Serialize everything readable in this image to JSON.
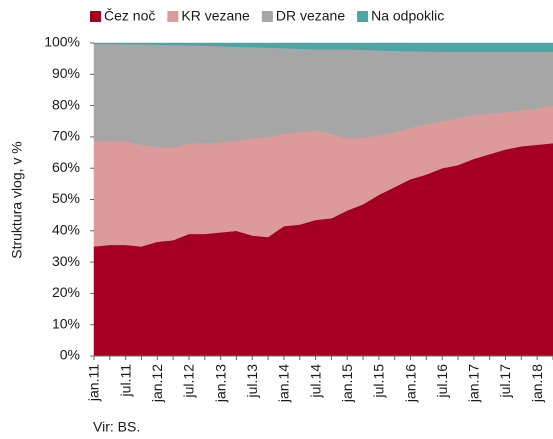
{
  "chart_data": {
    "type": "stacked_area",
    "y_axis_label": "Struktura vlog, v %",
    "source": "Vir: BS.",
    "legend": "top",
    "categories": [
      "jan.11",
      null,
      "jul.11",
      null,
      "jan.12",
      null,
      "jul.12",
      null,
      "jan.13",
      null,
      "jul.13",
      null,
      "jan.14",
      null,
      "jul.14",
      null,
      "jan.15",
      null,
      "jul.15",
      null,
      "jan.16",
      null,
      "jul.16",
      null,
      "jan.17",
      null,
      "jul.17",
      null,
      "jan.18",
      null
    ],
    "ylim": [
      0,
      100
    ],
    "yticks": [
      {
        "value": 0,
        "label": "0%"
      },
      {
        "value": 10,
        "label": "10%"
      },
      {
        "value": 20,
        "label": "20%"
      },
      {
        "value": 30,
        "label": "30%"
      },
      {
        "value": 40,
        "label": "40%"
      },
      {
        "value": 50,
        "label": "50%"
      },
      {
        "value": 60,
        "label": "60%"
      },
      {
        "value": 70,
        "label": "70%"
      },
      {
        "value": 80,
        "label": "80%"
      },
      {
        "value": 90,
        "label": "90%"
      },
      {
        "value": 100,
        "label": "100%"
      }
    ],
    "series": [
      {
        "name": "Čez noč",
        "color": "#a50021",
        "values": [
          35,
          35.5,
          35.5,
          35,
          36.5,
          37,
          39,
          39,
          39.5,
          40,
          38.5,
          38,
          41.5,
          42,
          43.5,
          44,
          46.5,
          48.5,
          51.5,
          54,
          56.5,
          58,
          60,
          61,
          63,
          64.5,
          66,
          67,
          67.5,
          68
        ]
      },
      {
        "name": "KR vezane",
        "color": "#dd9a9a",
        "values": [
          33.5,
          33.3,
          33,
          32.5,
          30.3,
          29.5,
          29,
          29,
          28.8,
          28.8,
          31,
          32,
          29.5,
          29.5,
          28.5,
          27,
          23,
          21.3,
          19,
          17.5,
          16.5,
          16,
          15,
          15,
          14,
          13,
          12,
          11.5,
          11.5,
          12
        ]
      },
      {
        "name": "DR vezane",
        "color": "#a6a6a6",
        "values": [
          31.2,
          30.9,
          31.1,
          32.1,
          32.7,
          32.9,
          31.3,
          31.2,
          30.7,
          30,
          29.2,
          28.5,
          27.4,
          26.7,
          26,
          27,
          28.5,
          28,
          27.2,
          26,
          24.4,
          23.3,
          22.2,
          21.2,
          20.2,
          19.7,
          19.2,
          18.7,
          18.2,
          17.2
        ]
      },
      {
        "name": "Na odpoklic",
        "color": "#4aa6a5",
        "values": [
          0.3,
          0.3,
          0.4,
          0.4,
          0.5,
          0.6,
          0.7,
          0.8,
          1,
          1.2,
          1.3,
          1.5,
          1.6,
          1.8,
          2,
          2,
          2,
          2.2,
          2.3,
          2.5,
          2.6,
          2.7,
          2.8,
          2.8,
          2.8,
          2.8,
          2.8,
          2.8,
          2.8,
          2.8
        ]
      }
    ]
  }
}
